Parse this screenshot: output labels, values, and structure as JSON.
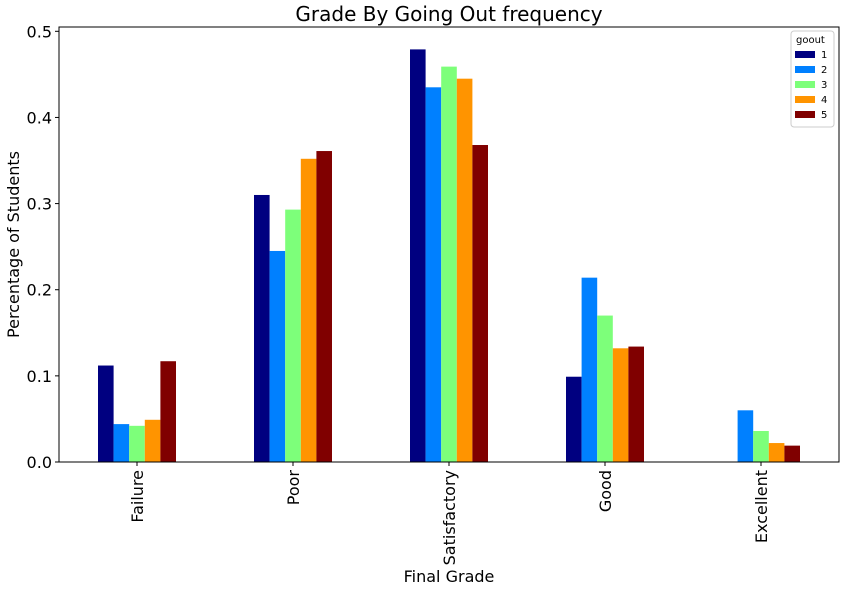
{
  "chart_data": {
    "type": "bar",
    "title": "Grade By Going Out frequency",
    "xlabel": "Final Grade",
    "ylabel": "Percentage of Students",
    "categories": [
      "Failure",
      "Poor",
      "Satisfactory",
      "Good",
      "Excellent"
    ],
    "ylim": [
      0,
      0.505
    ],
    "yticks": [
      "0.0",
      "0.1",
      "0.2",
      "0.3",
      "0.4",
      "0.5"
    ],
    "ytick_values": [
      0,
      0.1,
      0.2,
      0.3,
      0.4,
      0.5
    ],
    "legend_title": "goout",
    "legend_position": "top-right",
    "grid": false,
    "series": [
      {
        "name": "1",
        "color": "#000080",
        "values": [
          0.112,
          0.31,
          0.479,
          0.099,
          0.0
        ]
      },
      {
        "name": "2",
        "color": "#0080ff",
        "values": [
          0.044,
          0.245,
          0.435,
          0.214,
          0.06
        ]
      },
      {
        "name": "3",
        "color": "#7dff7a",
        "values": [
          0.042,
          0.293,
          0.459,
          0.17,
          0.036
        ]
      },
      {
        "name": "4",
        "color": "#ff9400",
        "values": [
          0.049,
          0.352,
          0.445,
          0.132,
          0.022
        ]
      },
      {
        "name": "5",
        "color": "#800000",
        "values": [
          0.117,
          0.361,
          0.368,
          0.134,
          0.019
        ]
      }
    ]
  }
}
